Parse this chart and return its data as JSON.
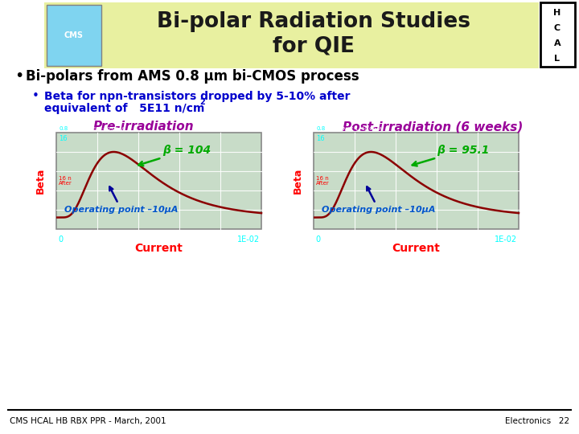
{
  "title_line1": "Bi-polar Radiation Studies",
  "title_line2": "for QIE",
  "hcal_letters": [
    "H",
    "C",
    "A",
    "L"
  ],
  "header_bg_color": "#e8f0a0",
  "bullet1": "Bi-polars from AMS 0.8 μm bi-CMOS process",
  "bullet2_line1": "Beta for npn-transistors dropped by 5-10% after",
  "bullet2_line2": "equivalent of   5E11 n/cm",
  "label_pre": "Pre-irradiation",
  "label_post": "Post-irradiation (6 weeks)",
  "beta_pre": "β = 104",
  "beta_post": "β = 95.1",
  "op_point": "Operating point –10μA",
  "xlabel": "Current",
  "ylabel": "Beta",
  "footer_left": "CMS HCAL HB RBX PPR - March, 2001",
  "footer_right": "Electronics   22",
  "bg_color": "#ffffff",
  "title_color": "#1a1a1a",
  "bullet1_color": "#000000",
  "bullet2_color": "#0000cc",
  "label_color": "#990099",
  "beta_color": "#00aa00",
  "op_color": "#0055cc",
  "footer_color": "#000000",
  "plot_bg": "#c8dcc8",
  "curve_color": "#8b0000",
  "arrow_beta_color": "#00aa00",
  "arrow_op_color": "#000099"
}
